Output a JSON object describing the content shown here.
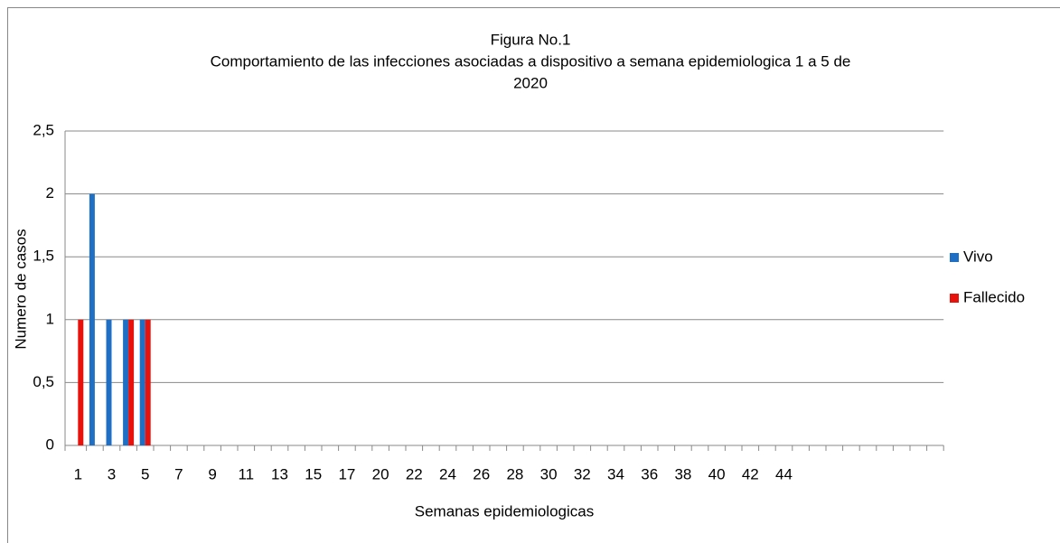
{
  "chart_data": {
    "type": "bar",
    "title": "Figura No.1",
    "subtitle": [
      "Comportamiento de las infecciones asociadas a dispositivo a semana epidemiologica  1 a 5 de",
      "2020"
    ],
    "x_label": "Semanas epidemiologicas",
    "y_label": "Numero de casos",
    "categories": [
      "1",
      null,
      "3",
      null,
      "5",
      null,
      "7",
      null,
      "9",
      null,
      "11",
      null,
      "13",
      null,
      "15",
      null,
      "17",
      null,
      "20",
      null,
      "22",
      null,
      "24",
      null,
      "26",
      null,
      "28",
      null,
      "30",
      null,
      "32",
      null,
      "34",
      null,
      "36",
      null,
      "38",
      null,
      "40",
      null,
      "42",
      null,
      "44",
      null,
      null,
      null,
      null,
      null,
      null,
      null,
      null,
      null
    ],
    "series": [
      {
        "name": "Vivo",
        "color": "#1f6fc5",
        "values": [
          0,
          2,
          1,
          1,
          1,
          0,
          0,
          0,
          0,
          0,
          0,
          0,
          0,
          0,
          0,
          0,
          0,
          0,
          0,
          0,
          0,
          0,
          0,
          0,
          0,
          0,
          0,
          0,
          0,
          0,
          0,
          0,
          0,
          0,
          0,
          0,
          0,
          0,
          0,
          0,
          0,
          0,
          0,
          0,
          0,
          0,
          0,
          0,
          0,
          0,
          0,
          0
        ]
      },
      {
        "name": "Fallecido",
        "color": "#e8120c",
        "values": [
          1,
          0,
          0,
          1,
          1,
          0,
          0,
          0,
          0,
          0,
          0,
          0,
          0,
          0,
          0,
          0,
          0,
          0,
          0,
          0,
          0,
          0,
          0,
          0,
          0,
          0,
          0,
          0,
          0,
          0,
          0,
          0,
          0,
          0,
          0,
          0,
          0,
          0,
          0,
          0,
          0,
          0,
          0,
          0,
          0,
          0,
          0,
          0,
          0,
          0,
          0,
          0
        ]
      }
    ],
    "ylim": [
      0,
      2.5
    ],
    "yticks": [
      0,
      {
        "value": 0.5,
        "label": "0,5"
      },
      1,
      {
        "value": 1.5,
        "label": "1,5"
      },
      2,
      {
        "value": 2.5,
        "label": "2,5"
      }
    ],
    "grid": true,
    "legend": "right"
  }
}
